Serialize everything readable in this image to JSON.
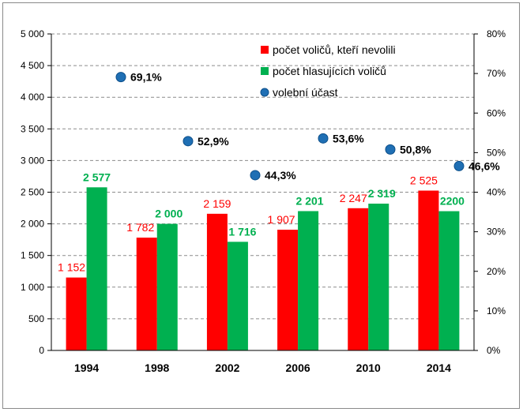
{
  "chart_data": {
    "type": "bar",
    "categories": [
      "1994",
      "1998",
      "2002",
      "2006",
      "2010",
      "2014"
    ],
    "series": [
      {
        "name": "počet voličů, kteří nevolili",
        "color": "#ff0000",
        "values": [
          1152,
          1782,
          2159,
          1907,
          2247,
          2525
        ],
        "labels": [
          "1 152",
          "1 782",
          "2 159",
          "1 907",
          "2 247",
          "2 525"
        ]
      },
      {
        "name": "počet hlasujících voličů",
        "color": "#00b050",
        "values": [
          2577,
          2000,
          1716,
          2201,
          2319,
          2200
        ],
        "labels": [
          "2 577",
          "2 000",
          "1 716",
          "2 201",
          "2 319",
          "2200"
        ]
      },
      {
        "name": "volební účast",
        "type": "scatter",
        "axis": "secondary",
        "color": "#1f6fb4",
        "values": [
          69.1,
          52.9,
          44.3,
          53.6,
          50.8,
          46.6
        ],
        "labels": [
          "69,1%",
          "52,9%",
          "44,3%",
          "53,6%",
          "50,8%",
          "46,6%"
        ]
      }
    ],
    "ylim": [
      0,
      5000
    ],
    "y_ticks": [
      "0",
      "500",
      "1 000",
      "1 500",
      "2 000",
      "2 500",
      "3 000",
      "3 500",
      "4 000",
      "4 500",
      "5 000"
    ],
    "y2lim": [
      0,
      80
    ],
    "y2_ticks": [
      "0%",
      "10%",
      "20%",
      "30%",
      "40%",
      "50%",
      "60%",
      "70%",
      "80%"
    ],
    "grid": "horizontal dashed",
    "legend_position": "top-right inside plot"
  }
}
